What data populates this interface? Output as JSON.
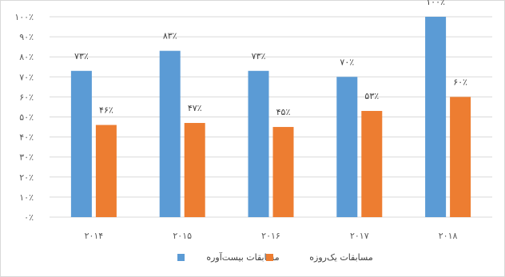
{
  "chart_data": {
    "type": "bar",
    "categories": [
      "۲۰۱۴",
      "۲۰۱۵",
      "۲۰۱۶",
      "۲۰۱۷",
      "۲۰۱۸"
    ],
    "series": [
      {
        "name": "مسابقات بیست‌آوره",
        "color": "#5b9bd5",
        "values": [
          73,
          83,
          73,
          70,
          100
        ],
        "labels": [
          "۷۳٪",
          "۸۳٪",
          "۷۳٪",
          "۷۰٪",
          "۱۰۰٪"
        ]
      },
      {
        "name": "مسابقات یک‌روزه",
        "color": "#ed7d31",
        "values": [
          46,
          47,
          45,
          53,
          60
        ],
        "labels": [
          "۴۶٪",
          "۴۷٪",
          "۴۵٪",
          "۵۳٪",
          "۶۰٪"
        ]
      }
    ],
    "y_ticks": [
      "۰٪",
      "۱۰٪",
      "۲۰٪",
      "۳۰٪",
      "۴۰٪",
      "۵۰٪",
      "۶۰٪",
      "۷۰٪",
      "۸۰٪",
      "۹۰٪",
      "۱۰۰٪"
    ],
    "ylim": [
      0,
      100
    ],
    "grid": true,
    "legend_position": "bottom"
  }
}
